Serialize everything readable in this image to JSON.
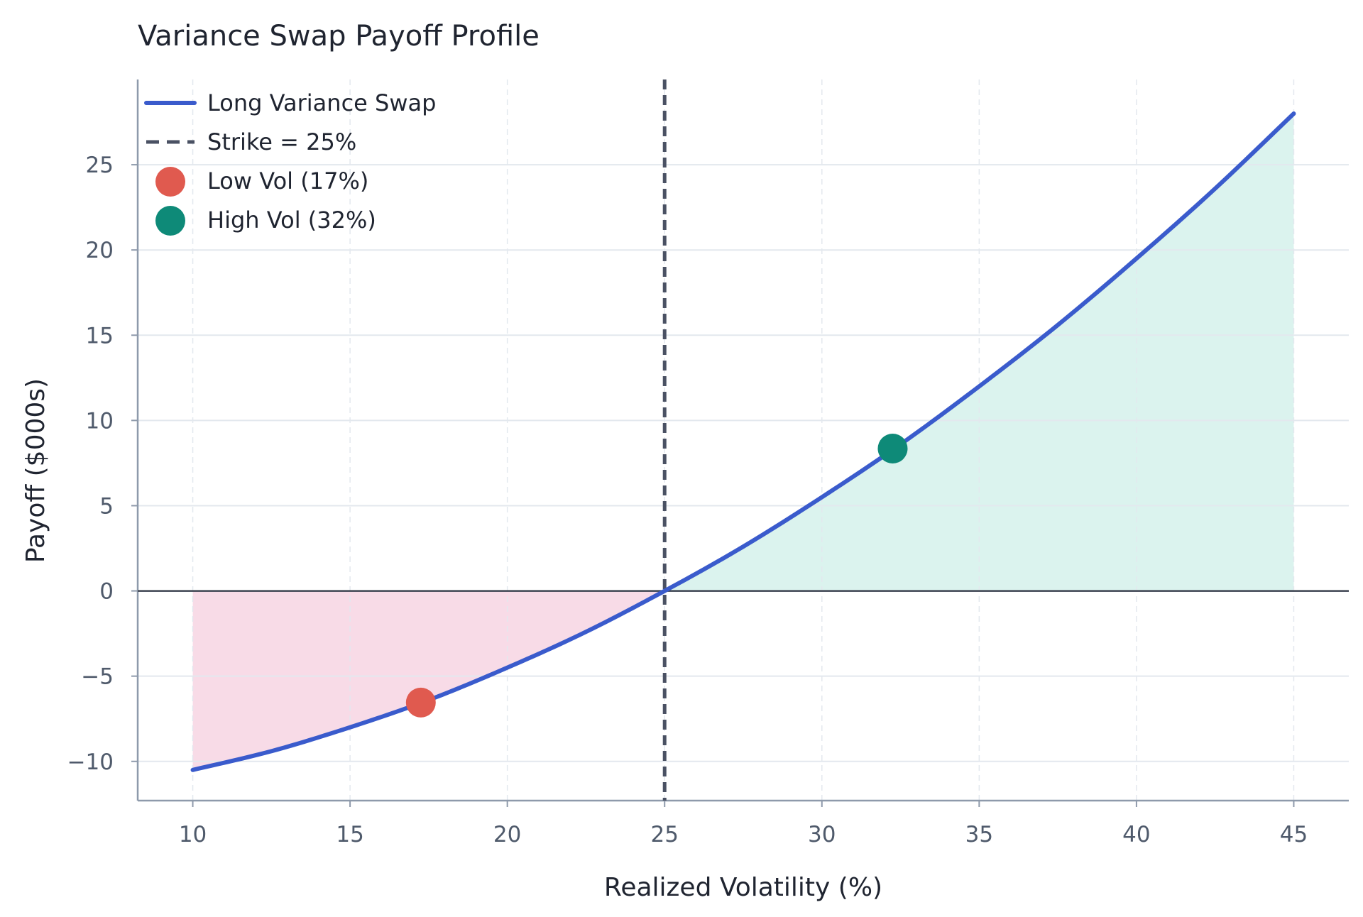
{
  "chart_data": {
    "type": "line",
    "title": "Variance Swap Payoff Profile",
    "xlabel": "Realized Volatility (%)",
    "ylabel": "Payoff ($000s)",
    "xlim": [
      8.25,
      46.75
    ],
    "ylim": [
      -12.3,
      30
    ],
    "xticks": [
      10,
      15,
      20,
      25,
      30,
      35,
      40,
      45
    ],
    "yticks": [
      -10,
      -5,
      0,
      5,
      10,
      15,
      20,
      25
    ],
    "grid": true,
    "legend_position": "top-left",
    "strike": 25,
    "series": [
      {
        "name": "Long Variance Swap",
        "type": "line",
        "color": "#3a5bcc",
        "x": [
          10,
          12.5,
          15,
          17.5,
          20,
          22.5,
          25,
          27.5,
          30,
          32.5,
          35,
          37.5,
          40,
          42.5,
          45
        ],
        "y": [
          -10.5,
          -9.4,
          -8,
          -6.4,
          -4.5,
          -2.4,
          0,
          2.6,
          5.5,
          8.6,
          12,
          15.6,
          19.5,
          23.6,
          28
        ]
      },
      {
        "name": "Strike = 25%",
        "type": "vline",
        "x": 25,
        "color": "#4a5163"
      },
      {
        "name": "Low Vol (17%)",
        "type": "point",
        "x": 17.25,
        "y": -6.55,
        "color": "#e05a4f"
      },
      {
        "name": "High Vol (32%)",
        "type": "point",
        "x": 32.25,
        "y": 8.35,
        "color": "#0e8a78"
      }
    ],
    "fills": [
      {
        "region": "below-zero",
        "x_from": 10,
        "x_to": 25,
        "color": "#f8dbe7"
      },
      {
        "region": "above-zero",
        "x_from": 25,
        "x_to": 45,
        "color": "#dbf3ee"
      }
    ],
    "colors": {
      "grid": "#e3e8ee",
      "axis": "#8e9aab",
      "zero_line": "#3d4350"
    }
  }
}
